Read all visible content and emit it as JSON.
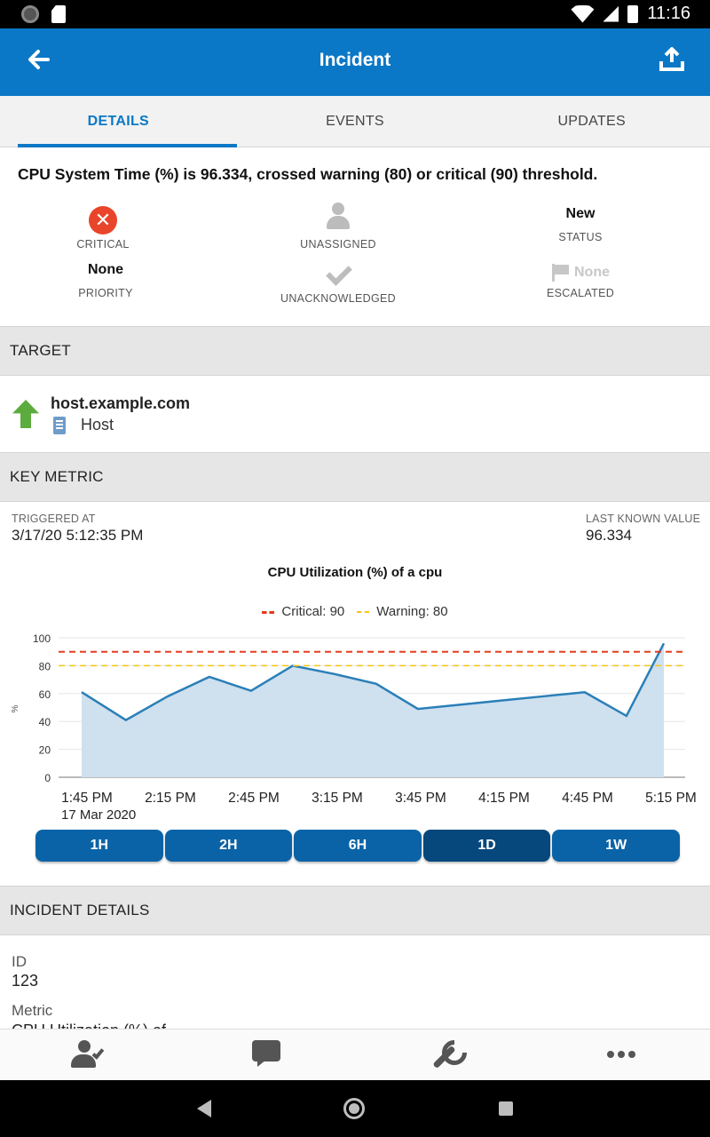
{
  "status_bar": {
    "time": "11:16"
  },
  "app_bar": {
    "title": "Incident"
  },
  "tabs": [
    {
      "label": "DETAILS",
      "active": true
    },
    {
      "label": "EVENTS",
      "active": false
    },
    {
      "label": "UPDATES",
      "active": false
    }
  ],
  "summary": "CPU System Time (%) is 96.334, crossed warning (80) or critical (90) threshold.",
  "fields": {
    "severity": "CRITICAL",
    "assignee": "UNASSIGNED",
    "status_value": "New",
    "status_caption": "STATUS",
    "priority_value": "None",
    "priority_caption": "PRIORITY",
    "ack": "UNACKNOWLEDGED",
    "escalated_value": "None",
    "escalated_caption": "ESCALATED"
  },
  "target": {
    "header": "TARGET",
    "host_name": "host.example.com",
    "host_type": "Host"
  },
  "key_metric": {
    "header": "KEY METRIC",
    "triggered_label": "TRIGGERED AT",
    "triggered_value": "3/17/20 5:12:35 PM",
    "last_value_label": "LAST KNOWN VALUE",
    "last_value": "96.334"
  },
  "chart_data": {
    "type": "area",
    "title": "CPU Utilization (%) of a cpu",
    "ylabel": "%",
    "ylim": [
      0,
      100
    ],
    "yticks": [
      0,
      20,
      40,
      60,
      80,
      100
    ],
    "xticks": [
      "1:45 PM",
      "2:15 PM",
      "2:45 PM",
      "3:15 PM",
      "3:45 PM",
      "4:15 PM",
      "4:45 PM",
      "5:15 PM"
    ],
    "date_label": "17 Mar 2020",
    "legend": [
      {
        "name": "Critical: 90",
        "value": 90,
        "color": "#e53b1e"
      },
      {
        "name": "Warning: 80",
        "value": 80,
        "color": "#f5c518"
      }
    ],
    "series": [
      {
        "color": "#2a7fb8",
        "fill": "#cfe0ef",
        "x": [
          "1:45 PM",
          "1:59 PM",
          "2:14 PM",
          "2:29 PM",
          "2:44 PM",
          "2:59 PM",
          "3:14 PM",
          "3:29 PM",
          "3:44 PM",
          "3:59 PM",
          "4:14 PM",
          "4:29 PM",
          "4:44 PM",
          "4:59 PM",
          "5:13 PM"
        ],
        "values": [
          61,
          41,
          58,
          72,
          62,
          80,
          74,
          67,
          49,
          52,
          55,
          58,
          61,
          44,
          96
        ]
      }
    ]
  },
  "range_buttons": [
    {
      "label": "1H",
      "selected": false
    },
    {
      "label": "2H",
      "selected": false
    },
    {
      "label": "6H",
      "selected": false
    },
    {
      "label": "1D",
      "selected": true
    },
    {
      "label": "1W",
      "selected": false
    }
  ],
  "incident_details": {
    "header": "INCIDENT DETAILS",
    "id_label": "ID",
    "id_value": "123",
    "metric_label": "Metric",
    "metric_value": "CPU Utilization (%) of"
  }
}
